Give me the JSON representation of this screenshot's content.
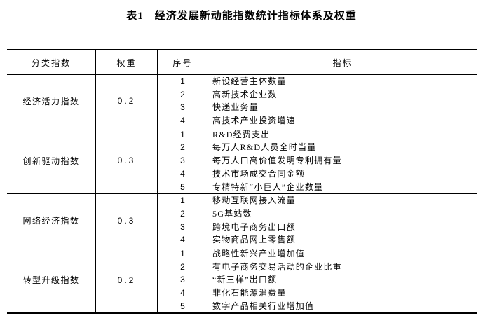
{
  "title": "表1　经济发展新动能指数统计指标体系及权重",
  "table": {
    "headers": [
      "分类指数",
      "权重",
      "序号",
      "指标"
    ],
    "groups": [
      {
        "category": "经济活力指数",
        "weight": "0.2",
        "seq": [
          "1",
          "2",
          "3",
          "4"
        ],
        "indicators": [
          "新设经营主体数量",
          "高新技术企业数",
          "快递业务量",
          "高技术产业投资增速"
        ]
      },
      {
        "category": "创新驱动指数",
        "weight": "0.3",
        "seq": [
          "1",
          "2",
          "3",
          "4",
          "5"
        ],
        "indicators": [
          "R&D经费支出",
          "每万人R&D人员全时当量",
          "每万人口高价值发明专利拥有量",
          "技术市场成交合同金额",
          "专精特新“小巨人”企业数量"
        ]
      },
      {
        "category": "网络经济指数",
        "weight": "0.3",
        "seq": [
          "1",
          "2",
          "3",
          "4"
        ],
        "indicators": [
          "移动互联网接入流量",
          "5G基站数",
          "跨境电子商务出口额",
          "实物商品网上零售额"
        ]
      },
      {
        "category": "转型升级指数",
        "weight": "0.2",
        "seq": [
          "1",
          "2",
          "3",
          "4",
          "5"
        ],
        "indicators": [
          "战略性新兴产业增加值",
          "有电子商务交易活动的企业比重",
          "“新三样”出口额",
          "非化石能源消费量",
          "数字产品相关行业增加值"
        ]
      }
    ]
  }
}
